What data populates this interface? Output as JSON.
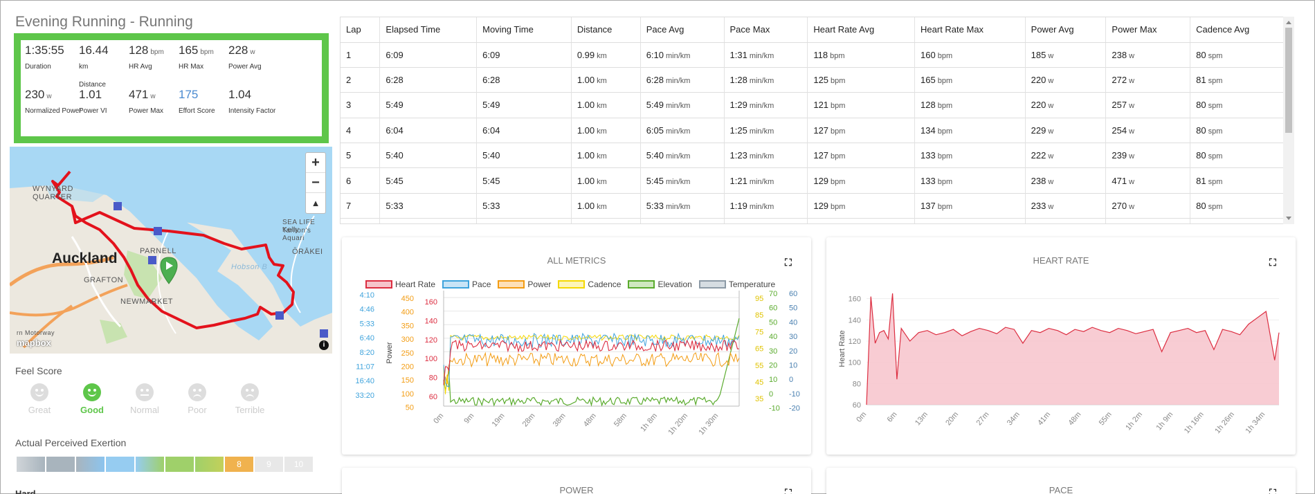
{
  "activity": {
    "title": "Evening Running - Running",
    "stats": [
      {
        "value": "1:35:55",
        "unit": "",
        "label": "Duration"
      },
      {
        "value": "16.44",
        "unit": "",
        "label": "km\n\nDistance"
      },
      {
        "value": "128",
        "unit": "bpm",
        "label": "HR Avg"
      },
      {
        "value": "165",
        "unit": "bpm",
        "label": "HR Max"
      },
      {
        "value": "228",
        "unit": "w",
        "label": "Power Avg"
      },
      {
        "value": "230",
        "unit": "w",
        "label": "Normalized Power"
      },
      {
        "value": "1.01",
        "unit": "",
        "label": "Power VI"
      },
      {
        "value": "471",
        "unit": "w",
        "label": "Power Max"
      },
      {
        "value": "175",
        "unit": "",
        "label": "Effort Score"
      },
      {
        "value": "1.04",
        "unit": "",
        "label": "Intensity Factor"
      }
    ]
  },
  "map": {
    "city": "Auckland",
    "labels": [
      "WYNYARD",
      "QUARTER",
      "PARNELL",
      "GRAFTON",
      "NEWMARKET",
      "ŌRĀKEI",
      "SEA LIFE Kelly",
      "Tarlton's Aquari",
      "Hobson B",
      "rn Motorway"
    ],
    "attribution": "mapbox",
    "zoom_in": "+",
    "zoom_out": "−",
    "compass": "▲"
  },
  "feel": {
    "title": "Feel Score",
    "options": [
      "Great",
      "Good",
      "Normal",
      "Poor",
      "Terrible"
    ],
    "selected": "Good"
  },
  "rpe": {
    "title": "Actual Perceived Exertion",
    "cells": [
      "",
      "",
      "",
      "",
      "",
      "",
      "",
      "8",
      "9",
      "10"
    ],
    "selected_value": 8,
    "selected_label": "Hard"
  },
  "laps": {
    "headers": [
      "Lap",
      "Elapsed Time",
      "Moving Time",
      "Distance",
      "Pace Avg",
      "Pace Max",
      "Heart Rate Avg",
      "Heart Rate Max",
      "Power Avg",
      "Power Max",
      "Cadence Avg"
    ],
    "rows": [
      [
        "1",
        "6:09",
        "6:09",
        "0.99|km",
        "6:10|min/km",
        "1:31|min/km",
        "118|bpm",
        "160|bpm",
        "185|w",
        "238|w",
        "80|spm"
      ],
      [
        "2",
        "6:28",
        "6:28",
        "1.00|km",
        "6:28|min/km",
        "1:28|min/km",
        "125|bpm",
        "165|bpm",
        "220|w",
        "272|w",
        "81|spm"
      ],
      [
        "3",
        "5:49",
        "5:49",
        "1.00|km",
        "5:49|min/km",
        "1:29|min/km",
        "121|bpm",
        "128|bpm",
        "220|w",
        "257|w",
        "80|spm"
      ],
      [
        "4",
        "6:04",
        "6:04",
        "1.00|km",
        "6:05|min/km",
        "1:25|min/km",
        "127|bpm",
        "134|bpm",
        "229|w",
        "254|w",
        "80|spm"
      ],
      [
        "5",
        "5:40",
        "5:40",
        "1.00|km",
        "5:40|min/km",
        "1:23|min/km",
        "127|bpm",
        "133|bpm",
        "222|w",
        "239|w",
        "80|spm"
      ],
      [
        "6",
        "5:45",
        "5:45",
        "1.00|km",
        "5:45|min/km",
        "1:21|min/km",
        "129|bpm",
        "133|bpm",
        "238|w",
        "471|w",
        "81|spm"
      ],
      [
        "7",
        "5:33",
        "5:33",
        "1.00|km",
        "5:33|min/km",
        "1:19|min/km",
        "129|bpm",
        "137|bpm",
        "233|w",
        "270|w",
        "80|spm"
      ]
    ]
  },
  "cards": {
    "all_metrics": "ALL METRICS",
    "heart_rate": "HEART RATE",
    "power": "POWER",
    "pace": "PACE"
  },
  "colors": {
    "accent_green": "#5ec64a",
    "heart_rate": "#dc2d40",
    "pace": "#3ea3dc",
    "power": "#f39c12",
    "cadence": "#f5d800",
    "elevation": "#5aab2d",
    "temperature": "#8c9aa6"
  },
  "chart_data": [
    {
      "type": "line",
      "title": "ALL METRICS",
      "series": [
        {
          "name": "Heart Rate",
          "color": "#dc2d40"
        },
        {
          "name": "Pace",
          "color": "#3ea3dc"
        },
        {
          "name": "Power",
          "color": "#f39c12"
        },
        {
          "name": "Cadence",
          "color": "#f5d800"
        },
        {
          "name": "Elevation",
          "color": "#5aab2d"
        },
        {
          "name": "Temperature",
          "color": "#8c9aa6"
        }
      ],
      "x_ticks": [
        "0m",
        "9m",
        "19m",
        "28m",
        "38m",
        "48m",
        "58m",
        "1h 8m",
        "1h 20m",
        "1h 30m"
      ],
      "axes": {
        "pace": [
          "4:10",
          "4:46",
          "5:33",
          "6:40",
          "8:20",
          "11:07",
          "16:40",
          "33:20"
        ],
        "power": [
          "450",
          "400",
          "350",
          "300",
          "250",
          "200",
          "150",
          "100",
          "50"
        ],
        "power_label": "Power",
        "hr": [
          "160",
          "140",
          "120",
          "100",
          "80",
          "60"
        ],
        "cadence": [
          "95",
          "85",
          "75",
          "65",
          "55",
          "45",
          "35"
        ],
        "elevation": [
          "70",
          "60",
          "50",
          "40",
          "30",
          "20",
          "10",
          "0",
          "-10"
        ],
        "temperature": [
          "60",
          "50",
          "40",
          "30",
          "20",
          "10",
          "0",
          "-10",
          "-20"
        ]
      }
    },
    {
      "type": "area",
      "title": "HEART RATE",
      "ylabel": "Heart Rate",
      "ylim": [
        60,
        165
      ],
      "y_ticks": [
        "160",
        "140",
        "120",
        "100",
        "80",
        "60"
      ],
      "x_ticks": [
        "0m",
        "6m",
        "13m",
        "20m",
        "27m",
        "34m",
        "41m",
        "48m",
        "55m",
        "1h 2m",
        "1h 9m",
        "1h 16m",
        "1h 26m",
        "1h 34m"
      ],
      "x_minutes": [
        0,
        1,
        2,
        3,
        4,
        5,
        6,
        7,
        8,
        9,
        10,
        12,
        14,
        16,
        18,
        20,
        22,
        24,
        26,
        28,
        30,
        32,
        34,
        36,
        38,
        40,
        42,
        44,
        46,
        48,
        50,
        52,
        54,
        56,
        58,
        60,
        62,
        64,
        66,
        68,
        70,
        72,
        74,
        76,
        78,
        80,
        82,
        84,
        86,
        88,
        90,
        92,
        94,
        95
      ],
      "values": [
        60,
        162,
        118,
        128,
        130,
        122,
        165,
        84,
        132,
        126,
        120,
        128,
        130,
        126,
        128,
        131,
        125,
        129,
        132,
        130,
        127,
        133,
        131,
        118,
        130,
        128,
        132,
        130,
        126,
        131,
        129,
        133,
        130,
        128,
        132,
        130,
        127,
        129,
        131,
        110,
        128,
        130,
        132,
        128,
        130,
        112,
        131,
        129,
        126,
        136,
        142,
        148,
        102,
        128
      ]
    },
    {
      "type": "line",
      "title": "POWER"
    },
    {
      "type": "line",
      "title": "PACE"
    }
  ]
}
